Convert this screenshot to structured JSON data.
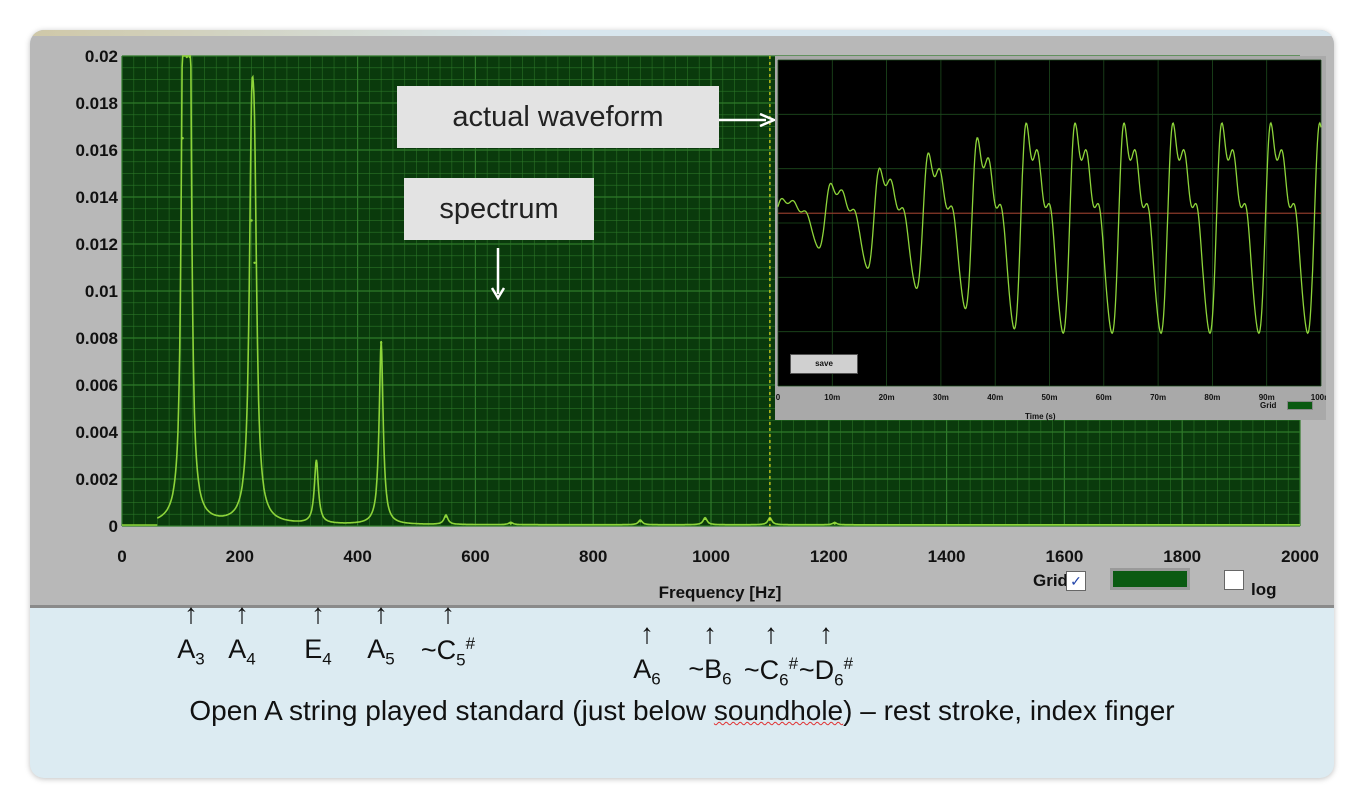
{
  "chart_data": {
    "type": "line",
    "title": "",
    "xlabel": "Frequency [Hz]",
    "ylabel": "",
    "xlim": [
      0,
      2000
    ],
    "ylim": [
      0,
      0.02
    ],
    "xticks": [
      0,
      200,
      400,
      600,
      800,
      1000,
      1200,
      1400,
      1600,
      1800,
      2000
    ],
    "yticks": [
      0,
      0.002,
      0.004,
      0.006,
      0.008,
      0.01,
      0.012,
      0.014,
      0.016,
      0.018,
      0.02
    ],
    "ytick_labels": [
      "0",
      "0.002",
      "0.004",
      "0.006",
      "0.008",
      "0.01",
      "0.012",
      "0.014",
      "0.016",
      "0.018",
      "0.02"
    ],
    "grid": true,
    "colors": {
      "plot_bg": "#0a3a0c",
      "grid": "#2f7a2a",
      "line": "#8dd43a"
    },
    "peaks": [
      {
        "x": 103,
        "y": 0.0165
      },
      {
        "x": 110,
        "y": 0.02
      },
      {
        "x": 115,
        "y": 0.02
      },
      {
        "x": 220,
        "y": 0.013
      },
      {
        "x": 225,
        "y": 0.0112
      },
      {
        "x": 330,
        "y": 0.0027
      },
      {
        "x": 440,
        "y": 0.0078
      },
      {
        "x": 550,
        "y": 0.0004
      },
      {
        "x": 660,
        "y": 0.0001
      },
      {
        "x": 880,
        "y": 0.0002
      },
      {
        "x": 990,
        "y": 0.0003
      },
      {
        "x": 1100,
        "y": 0.0003
      },
      {
        "x": 1210,
        "y": 0.0001
      }
    ],
    "cursor_x": 1100,
    "inset": {
      "type": "line",
      "xlabel": "Time (s)",
      "x_ticks": [
        "0",
        "10m",
        "20m",
        "30m",
        "40m",
        "50m",
        "60m",
        "70m",
        "80m",
        "90m",
        "100m"
      ],
      "colors": {
        "bg": "#000000",
        "line": "#8dd43a",
        "zero_line": "#8a3a2a"
      }
    }
  },
  "annotations": {
    "waveform": "actual waveform",
    "spectrum": "spectrum"
  },
  "controls": {
    "grid_label": "Grid",
    "grid_checked": "✓",
    "log_label": "log",
    "save_label": "save",
    "inset_grid_label": "Grid"
  },
  "notes": [
    {
      "base": "A",
      "sub": "3",
      "sup": "",
      "prefix": ""
    },
    {
      "base": "A",
      "sub": "4",
      "sup": "",
      "prefix": ""
    },
    {
      "base": "E",
      "sub": "4",
      "sup": "",
      "prefix": ""
    },
    {
      "base": "A",
      "sub": "5",
      "sup": "",
      "prefix": ""
    },
    {
      "base": "C",
      "sub": "5",
      "sup": "#",
      "prefix": "~"
    },
    {
      "base": "A",
      "sub": "6",
      "sup": "",
      "prefix": ""
    },
    {
      "base": "B",
      "sub": "6",
      "sup": "",
      "prefix": "~"
    },
    {
      "base": "C",
      "sub": "6",
      "sup": "#",
      "prefix": "~"
    },
    {
      "base": "D",
      "sub": "6",
      "sup": "#",
      "prefix": "~"
    }
  ],
  "caption": {
    "before": "Open A string played standard (just below ",
    "misspelled": "soundhole",
    "after": ") – rest stroke, index finger"
  }
}
